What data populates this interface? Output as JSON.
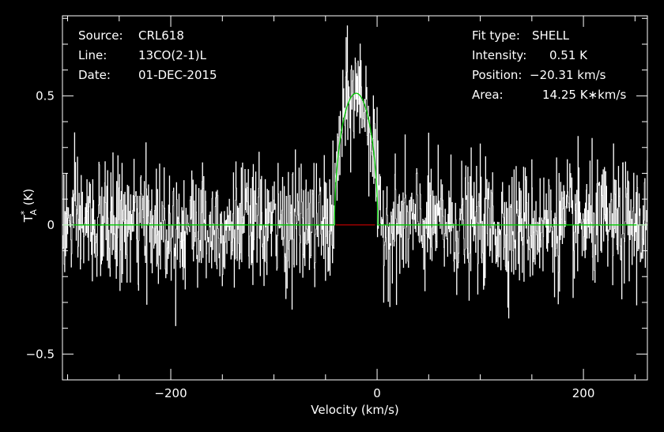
{
  "header": {
    "left": {
      "source_label": "Source:",
      "source_value": "CRL618",
      "line_label": "Line:",
      "line_value": "13CO(2-1)L",
      "date_label": "Date:",
      "date_value": "01-DEC-2015"
    },
    "right": {
      "fit_label": "Fit type:",
      "fit_value": "SHELL",
      "intensity_label": "Intensity:",
      "intensity_value": "0.51 K",
      "position_label": "Position:",
      "position_value": "−20.31 km/s",
      "area_label": "Area:",
      "area_value": "14.25 K∗km/s"
    }
  },
  "chart_data": {
    "type": "line",
    "xlabel": "Velocity (km/s)",
    "ylabel": "T*A (K)",
    "ylabel_parts": {
      "main": "T",
      "sup": "*",
      "sub": "A",
      "unit": " (K)"
    },
    "xlim": [
      -305,
      262
    ],
    "ylim": [
      -0.6,
      0.81
    ],
    "xticks": [
      -200,
      0,
      200
    ],
    "xtick_labels": [
      "−200",
      "0",
      "200"
    ],
    "yticks": [
      -0.5,
      0,
      0.5
    ],
    "ytick_labels": [
      "−0.5",
      "0",
      "0.5"
    ],
    "grid": false,
    "series": [
      {
        "kind": "noisy-spectrum",
        "color": "#ffffff",
        "channel_spacing_kms": 0.4,
        "rms_K": 0.12
      },
      {
        "kind": "fit-shell",
        "color": "#00cc00",
        "peak_K": 0.51,
        "center_kms": -20.31,
        "fwzp_kms": 42,
        "area_Kkms": 14.25
      },
      {
        "kind": "baseline-segment",
        "color": "#cc0000",
        "x_range_kms": [
          -40,
          -2
        ],
        "y": 0
      }
    ]
  }
}
